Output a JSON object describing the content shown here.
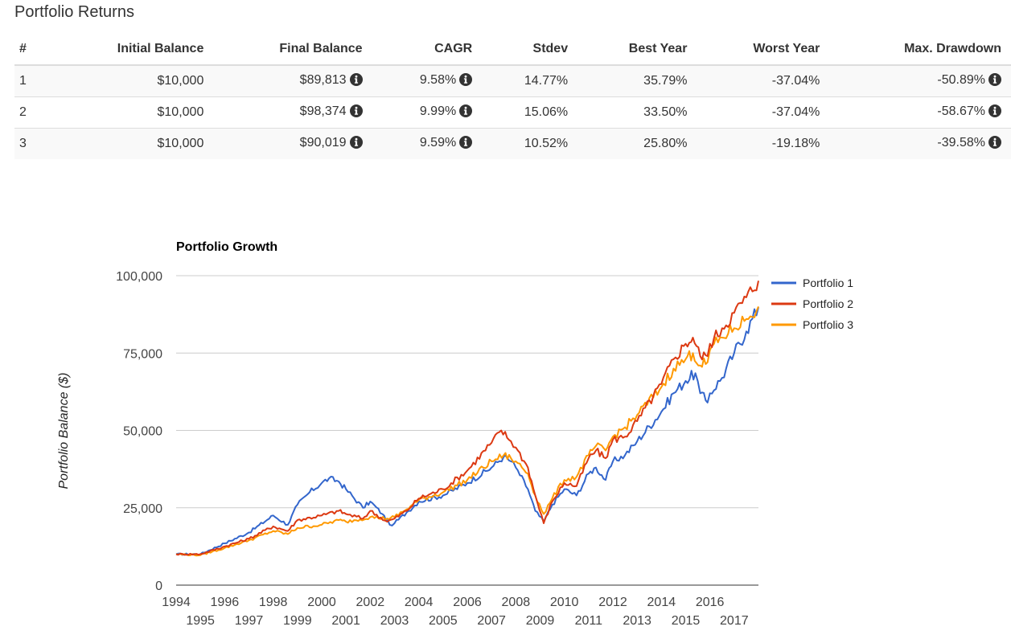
{
  "section_title": "Portfolio Returns",
  "table": {
    "headers": [
      "#",
      "Initial Balance",
      "Final Balance",
      "CAGR",
      "Stdev",
      "Best Year",
      "Worst Year",
      "Max. Drawdown"
    ],
    "rows": [
      [
        "1",
        "$10,000",
        "$89,813",
        "9.58%",
        "14.77%",
        "35.79%",
        "-37.04%",
        "-50.89%"
      ],
      [
        "2",
        "$10,000",
        "$98,374",
        "9.99%",
        "15.06%",
        "33.50%",
        "-37.04%",
        "-58.67%"
      ],
      [
        "3",
        "$10,000",
        "$90,019",
        "9.59%",
        "10.52%",
        "25.80%",
        "-19.18%",
        "-39.58%"
      ]
    ],
    "info_icon": "info-circle-icon"
  },
  "chart_data": {
    "type": "line",
    "title": "Portfolio Growth",
    "ylabel": "Portfolio Balance ($)",
    "xlabel": "",
    "ylim": [
      0,
      100000
    ],
    "xlim": [
      1994,
      2018
    ],
    "y_ticks": [
      0,
      25000,
      50000,
      75000,
      100000
    ],
    "y_tick_labels": [
      "0",
      "25,000",
      "50,000",
      "75,000",
      "100,000"
    ],
    "x_tick_labels_top": [
      "1994",
      "1996",
      "1998",
      "2000",
      "2002",
      "2004",
      "2006",
      "2008",
      "2010",
      "2012",
      "2014",
      "2016"
    ],
    "x_tick_labels_bottom": [
      "1995",
      "1997",
      "1999",
      "2001",
      "2003",
      "2005",
      "2007",
      "2009",
      "2011",
      "2013",
      "2015",
      "2017"
    ],
    "grid": true,
    "legend_position": "right",
    "series": [
      {
        "name": "Portfolio 1",
        "color": "#3366cc",
        "points": [
          [
            1994,
            10000
          ],
          [
            1995,
            10000
          ],
          [
            1996,
            13500
          ],
          [
            1997,
            17000
          ],
          [
            1998,
            22500
          ],
          [
            1998.6,
            19500
          ],
          [
            1999,
            26000
          ],
          [
            1999.5,
            30000
          ],
          [
            2000,
            33000
          ],
          [
            2000.3,
            34500
          ],
          [
            2000.7,
            33500
          ],
          [
            2001,
            31000
          ],
          [
            2001.7,
            25000
          ],
          [
            2002,
            27000
          ],
          [
            2002.5,
            23000
          ],
          [
            2002.8,
            19500
          ],
          [
            2003,
            20000
          ],
          [
            2003.5,
            23500
          ],
          [
            2004,
            27000
          ],
          [
            2005,
            29000
          ],
          [
            2006,
            33000
          ],
          [
            2007,
            38000
          ],
          [
            2007.5,
            41500
          ],
          [
            2007.8,
            40000
          ],
          [
            2008,
            38000
          ],
          [
            2008.5,
            31000
          ],
          [
            2008.8,
            24000
          ],
          [
            2009.15,
            20500
          ],
          [
            2009.5,
            26000
          ],
          [
            2010,
            31000
          ],
          [
            2010.5,
            29000
          ],
          [
            2011,
            36000
          ],
          [
            2011.3,
            38000
          ],
          [
            2011.7,
            34000
          ],
          [
            2012,
            40000
          ],
          [
            2012.5,
            42000
          ],
          [
            2013,
            46500
          ],
          [
            2014,
            56000
          ],
          [
            2014.5,
            62000
          ],
          [
            2015,
            66000
          ],
          [
            2015.4,
            68500
          ],
          [
            2015.6,
            62000
          ],
          [
            2015.9,
            59000
          ],
          [
            2016,
            62000
          ],
          [
            2016.5,
            67000
          ],
          [
            2017,
            75000
          ],
          [
            2017.5,
            82000
          ],
          [
            2018,
            89813
          ]
        ]
      },
      {
        "name": "Portfolio 2",
        "color": "#dc3912",
        "points": [
          [
            1994,
            10000
          ],
          [
            1995,
            10000
          ],
          [
            1996,
            12500
          ],
          [
            1997,
            15000
          ],
          [
            1998,
            19000
          ],
          [
            1998.6,
            17500
          ],
          [
            1999,
            21000
          ],
          [
            2000,
            22500
          ],
          [
            2000.7,
            24000
          ],
          [
            2001,
            23000
          ],
          [
            2001.7,
            21500
          ],
          [
            2002,
            24000
          ],
          [
            2002.7,
            20500
          ],
          [
            2003,
            21500
          ],
          [
            2003.5,
            24000
          ],
          [
            2004,
            28000
          ],
          [
            2005,
            31000
          ],
          [
            2006,
            37000
          ],
          [
            2007,
            46000
          ],
          [
            2007.4,
            50000
          ],
          [
            2007.8,
            46500
          ],
          [
            2008,
            44500
          ],
          [
            2008.5,
            38000
          ],
          [
            2008.8,
            29000
          ],
          [
            2009.15,
            20000
          ],
          [
            2009.5,
            27000
          ],
          [
            2010,
            33000
          ],
          [
            2010.5,
            32000
          ],
          [
            2011,
            41000
          ],
          [
            2011.3,
            43500
          ],
          [
            2011.7,
            41000
          ],
          [
            2012,
            47000
          ],
          [
            2012.5,
            48000
          ],
          [
            2013,
            53000
          ],
          [
            2014,
            65000
          ],
          [
            2014.5,
            73000
          ],
          [
            2015,
            78000
          ],
          [
            2015.3,
            80000
          ],
          [
            2015.6,
            74000
          ],
          [
            2015.9,
            74000
          ],
          [
            2016,
            78000
          ],
          [
            2016.5,
            83000
          ],
          [
            2017,
            88000
          ],
          [
            2017.5,
            93000
          ],
          [
            2018,
            98374
          ]
        ]
      },
      {
        "name": "Portfolio 3",
        "color": "#ff9900",
        "points": [
          [
            1994,
            10000
          ],
          [
            1995,
            9700
          ],
          [
            1996,
            12000
          ],
          [
            1997,
            14500
          ],
          [
            1998,
            17500
          ],
          [
            1998.6,
            16500
          ],
          [
            1999,
            18500
          ],
          [
            2000,
            19500
          ],
          [
            2000.7,
            21000
          ],
          [
            2001,
            20500
          ],
          [
            2002,
            22000
          ],
          [
            2002.7,
            21500
          ],
          [
            2003,
            22000
          ],
          [
            2003.5,
            24500
          ],
          [
            2004,
            27500
          ],
          [
            2005,
            30000
          ],
          [
            2006,
            34000
          ],
          [
            2007,
            40000
          ],
          [
            2007.5,
            42000
          ],
          [
            2007.8,
            41000
          ],
          [
            2008,
            40000
          ],
          [
            2008.5,
            36000
          ],
          [
            2008.8,
            29000
          ],
          [
            2009.15,
            23000
          ],
          [
            2009.5,
            28000
          ],
          [
            2010,
            34000
          ],
          [
            2010.5,
            35000
          ],
          [
            2011,
            42000
          ],
          [
            2011.3,
            45000
          ],
          [
            2011.7,
            43500
          ],
          [
            2012,
            48000
          ],
          [
            2012.5,
            51000
          ],
          [
            2013,
            55000
          ],
          [
            2014,
            64000
          ],
          [
            2014.5,
            70000
          ],
          [
            2015,
            73000
          ],
          [
            2015.3,
            75000
          ],
          [
            2015.6,
            71000
          ],
          [
            2015.9,
            72000
          ],
          [
            2016,
            76000
          ],
          [
            2016.5,
            80000
          ],
          [
            2017,
            83000
          ],
          [
            2017.5,
            86000
          ],
          [
            2018,
            90019
          ]
        ]
      }
    ]
  }
}
